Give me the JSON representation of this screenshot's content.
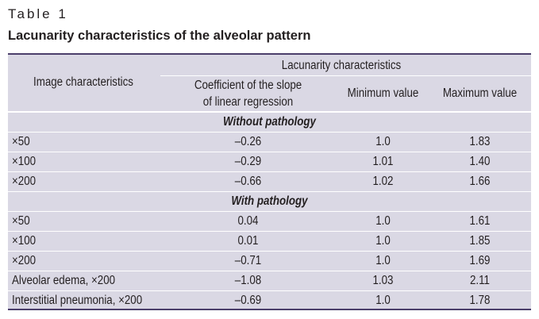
{
  "table_label": "Table 1",
  "table_title": "Lacunarity characteristics of the alveolar pattern",
  "header": {
    "group": "Lacunarity characteristics",
    "col1": "Image characteristics",
    "col2_line1": "Coefficient of the slope",
    "col2_line2": "of linear regression",
    "col3": "Minimum value",
    "col4": "Maximum value"
  },
  "sections": [
    {
      "title": "Without pathology",
      "rows": [
        {
          "label": "×50",
          "slope": "–0.26",
          "min": "1.0",
          "max": "1.83"
        },
        {
          "label": "×100",
          "slope": "–0.29",
          "min": "1.01",
          "max": "1.40"
        },
        {
          "label": "×200",
          "slope": "–0.66",
          "min": "1.02",
          "max": "1.66"
        }
      ]
    },
    {
      "title": "With pathology",
      "rows": [
        {
          "label": "×50",
          "slope": "0.04",
          "min": "1.0",
          "max": "1.61"
        },
        {
          "label": "×100",
          "slope": "0.01",
          "min": "1.0",
          "max": "1.85"
        },
        {
          "label": "×200",
          "slope": "–0.71",
          "min": "1.0",
          "max": "1.69"
        },
        {
          "label": "Alveolar edema, ×200",
          "slope": "–1.08",
          "min": "1.03",
          "max": "2.11"
        },
        {
          "label": "Interstitial pneumonia, ×200",
          "slope": "–0.69",
          "min": "1.0",
          "max": "1.78"
        }
      ]
    }
  ]
}
